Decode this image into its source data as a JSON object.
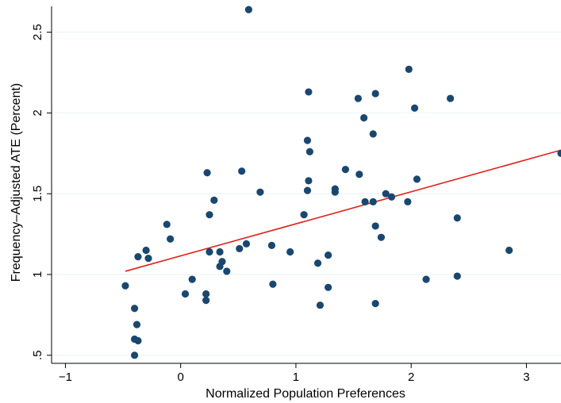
{
  "chart_data": {
    "type": "scatter",
    "title": "",
    "xlabel": "Normalized Population Preferences",
    "ylabel": "Frequency–Adjusted ATE (Percent)",
    "xlim": [
      -1.12,
      3.3
    ],
    "ylim": [
      0.45,
      2.66
    ],
    "x_ticks": [
      -1,
      0,
      1,
      2,
      3
    ],
    "x_tick_labels": [
      "−1",
      "0",
      "1",
      "2",
      "3"
    ],
    "y_ticks": [
      0.5,
      1,
      1.5,
      2,
      2.5
    ],
    "y_tick_labels": [
      ".5",
      "1",
      "1.5",
      "2",
      "2.5"
    ],
    "grid": true,
    "legend": "none",
    "colors": {
      "points": "#1a476f",
      "fit_line": "#e0201b",
      "grid": "#eaf2f3",
      "axis": "#000000"
    },
    "points": [
      {
        "x": 0.59,
        "y": 2.64
      },
      {
        "x": 1.98,
        "y": 2.27
      },
      {
        "x": 1.11,
        "y": 2.13
      },
      {
        "x": 1.69,
        "y": 2.12
      },
      {
        "x": 1.54,
        "y": 2.09
      },
      {
        "x": 2.34,
        "y": 2.09
      },
      {
        "x": 2.03,
        "y": 2.03
      },
      {
        "x": 1.59,
        "y": 1.97
      },
      {
        "x": 1.67,
        "y": 1.87
      },
      {
        "x": 1.1,
        "y": 1.83
      },
      {
        "x": 1.12,
        "y": 1.76
      },
      {
        "x": 3.3,
        "y": 1.75
      },
      {
        "x": 1.43,
        "y": 1.65
      },
      {
        "x": 0.53,
        "y": 1.64
      },
      {
        "x": 0.23,
        "y": 1.63
      },
      {
        "x": 1.55,
        "y": 1.62
      },
      {
        "x": 2.05,
        "y": 1.59
      },
      {
        "x": 1.11,
        "y": 1.58
      },
      {
        "x": 1.34,
        "y": 1.53
      },
      {
        "x": 1.34,
        "y": 1.51
      },
      {
        "x": 1.1,
        "y": 1.52
      },
      {
        "x": 0.69,
        "y": 1.51
      },
      {
        "x": 1.78,
        "y": 1.5
      },
      {
        "x": 1.83,
        "y": 1.48
      },
      {
        "x": 0.29,
        "y": 1.46
      },
      {
        "x": 1.6,
        "y": 1.45
      },
      {
        "x": 1.67,
        "y": 1.45
      },
      {
        "x": 1.97,
        "y": 1.45
      },
      {
        "x": 0.25,
        "y": 1.37
      },
      {
        "x": 1.07,
        "y": 1.37
      },
      {
        "x": 2.4,
        "y": 1.35
      },
      {
        "x": -0.12,
        "y": 1.31
      },
      {
        "x": 1.69,
        "y": 1.3
      },
      {
        "x": 1.74,
        "y": 1.23
      },
      {
        "x": -0.09,
        "y": 1.22
      },
      {
        "x": 0.57,
        "y": 1.19
      },
      {
        "x": 0.79,
        "y": 1.18
      },
      {
        "x": 0.51,
        "y": 1.16
      },
      {
        "x": 2.85,
        "y": 1.15
      },
      {
        "x": -0.3,
        "y": 1.15
      },
      {
        "x": 0.25,
        "y": 1.14
      },
      {
        "x": 0.34,
        "y": 1.14
      },
      {
        "x": 0.95,
        "y": 1.14
      },
      {
        "x": 1.28,
        "y": 1.12
      },
      {
        "x": -0.37,
        "y": 1.11
      },
      {
        "x": -0.28,
        "y": 1.1
      },
      {
        "x": 0.36,
        "y": 1.08
      },
      {
        "x": 1.19,
        "y": 1.07
      },
      {
        "x": 0.34,
        "y": 1.05
      },
      {
        "x": 0.4,
        "y": 1.02
      },
      {
        "x": 2.4,
        "y": 0.99
      },
      {
        "x": 2.13,
        "y": 0.97
      },
      {
        "x": 0.1,
        "y": 0.97
      },
      {
        "x": 0.8,
        "y": 0.94
      },
      {
        "x": -0.48,
        "y": 0.93
      },
      {
        "x": 1.28,
        "y": 0.92
      },
      {
        "x": 0.04,
        "y": 0.88
      },
      {
        "x": 0.22,
        "y": 0.88
      },
      {
        "x": 0.22,
        "y": 0.84
      },
      {
        "x": 1.69,
        "y": 0.82
      },
      {
        "x": 1.21,
        "y": 0.81
      },
      {
        "x": -0.4,
        "y": 0.79
      },
      {
        "x": -0.38,
        "y": 0.69
      },
      {
        "x": -0.4,
        "y": 0.6
      },
      {
        "x": -0.37,
        "y": 0.59
      },
      {
        "x": -0.4,
        "y": 0.5
      }
    ],
    "fit_line": {
      "x": [
        -0.48,
        3.3
      ],
      "y": [
        1.02,
        1.77
      ]
    }
  }
}
